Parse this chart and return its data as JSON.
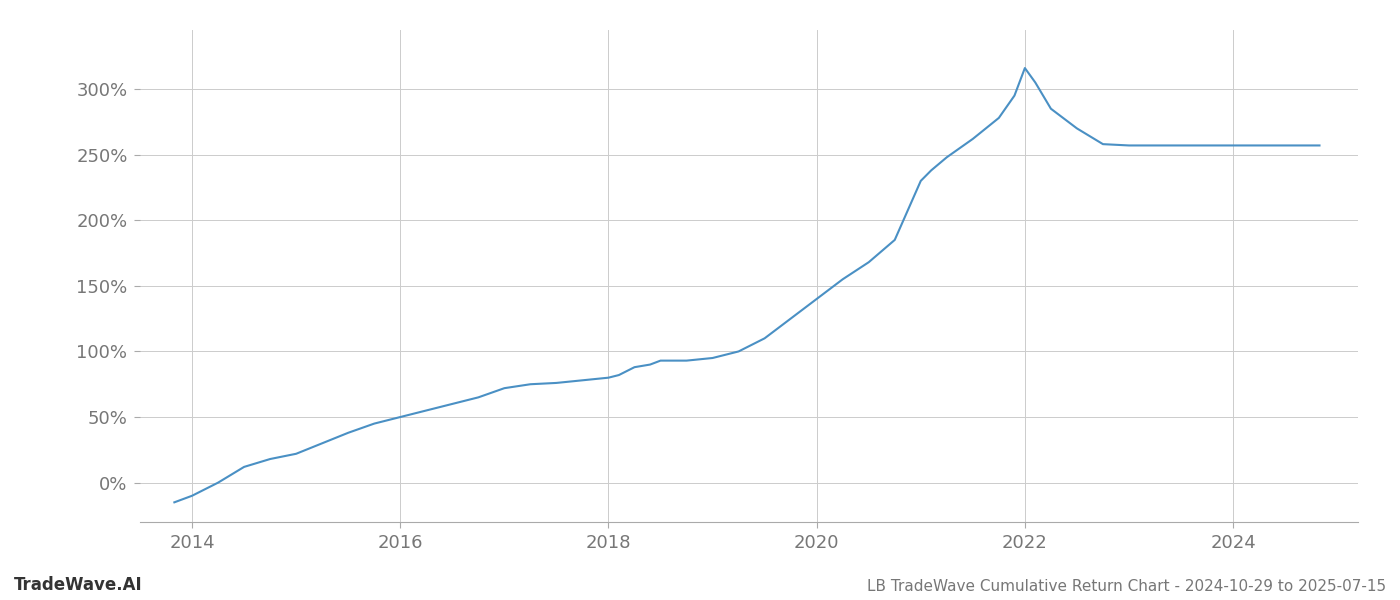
{
  "title": "LB TradeWave Cumulative Return Chart - 2024-10-29 to 2025-07-15",
  "watermark": "TradeWave.AI",
  "line_color": "#4a90c4",
  "background_color": "#ffffff",
  "grid_color": "#cccccc",
  "x_years": [
    2013.83,
    2014.0,
    2014.25,
    2014.5,
    2014.75,
    2015.0,
    2015.25,
    2015.5,
    2015.75,
    2016.0,
    2016.25,
    2016.5,
    2016.75,
    2017.0,
    2017.25,
    2017.5,
    2017.75,
    2018.0,
    2018.1,
    2018.25,
    2018.4,
    2018.5,
    2018.75,
    2019.0,
    2019.25,
    2019.5,
    2019.75,
    2020.0,
    2020.25,
    2020.5,
    2020.75,
    2021.0,
    2021.1,
    2021.25,
    2021.5,
    2021.75,
    2021.9,
    2022.0,
    2022.1,
    2022.25,
    2022.5,
    2022.75,
    2023.0,
    2023.25,
    2023.5,
    2023.75,
    2024.0,
    2024.25,
    2024.5,
    2024.75,
    2024.83
  ],
  "y_values": [
    -15,
    -10,
    0,
    12,
    18,
    22,
    30,
    38,
    45,
    50,
    55,
    60,
    65,
    72,
    75,
    76,
    78,
    80,
    82,
    88,
    90,
    93,
    93,
    95,
    100,
    110,
    125,
    140,
    155,
    168,
    185,
    230,
    238,
    248,
    262,
    278,
    295,
    316,
    305,
    285,
    270,
    258,
    257,
    257,
    257,
    257,
    257,
    257,
    257,
    257,
    257
  ],
  "xlim": [
    2013.5,
    2025.2
  ],
  "ylim": [
    -30,
    345
  ],
  "xticks": [
    2014,
    2016,
    2018,
    2020,
    2022,
    2024
  ],
  "yticks": [
    0,
    50,
    100,
    150,
    200,
    250,
    300
  ],
  "tick_label_color": "#777777",
  "tick_label_fontsize": 13,
  "title_fontsize": 11,
  "watermark_fontsize": 12,
  "line_width": 1.5
}
